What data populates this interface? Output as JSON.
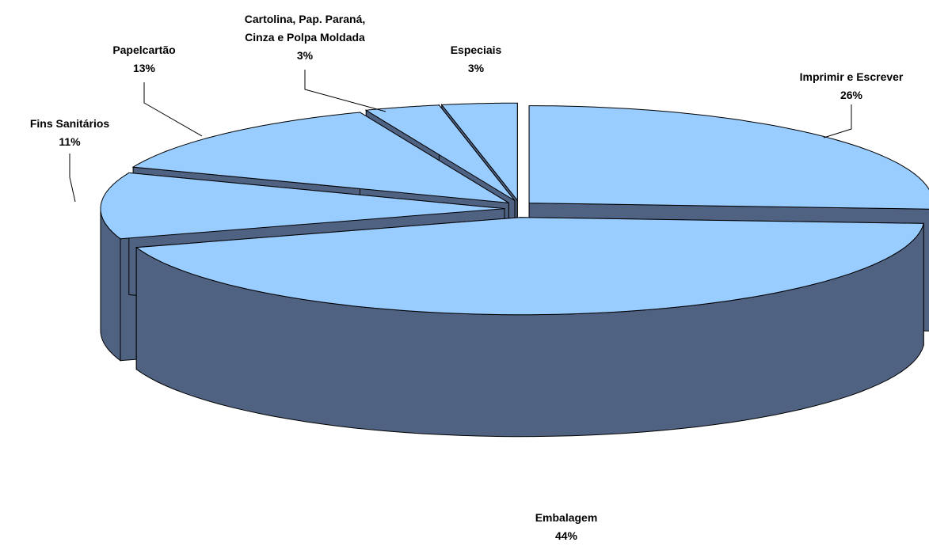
{
  "chart_data": {
    "type": "pie3d",
    "categories": [
      "Imprimir e Escrever",
      "Embalagem",
      "Fins Sanitários",
      "Papelcartão",
      "Cartolina, Pap. Paraná, Cinza e Polpa Moldada",
      "Especiais"
    ],
    "values": [
      26,
      44,
      11,
      13,
      3,
      3
    ],
    "value_labels": [
      "26%",
      "44%",
      "11%",
      "13%",
      "3%",
      "3%"
    ],
    "color": "#99ccff",
    "side_color": "#4f6282"
  }
}
